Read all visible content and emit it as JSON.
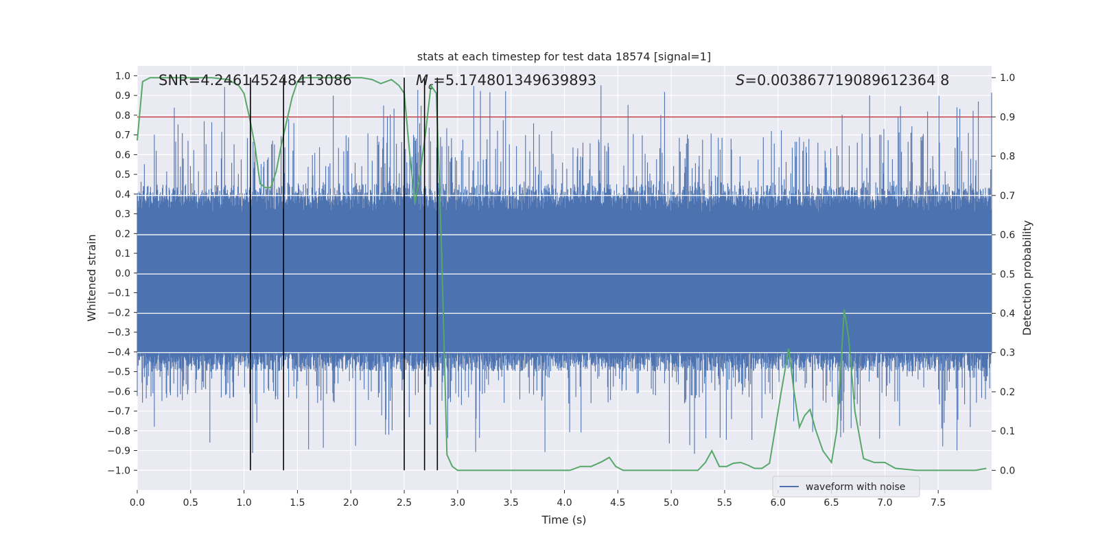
{
  "chart_data": {
    "type": "line",
    "title": "stats at each timestep for test data 18574 [signal=1]",
    "xlabel": "Time (s)",
    "ylabel": "Whitened strain",
    "ylabel_right": "Detection probability",
    "xlim": [
      0.0,
      8.0
    ],
    "ylim": [
      -1.1,
      1.05
    ],
    "ylim_right": [
      -0.05,
      1.03
    ],
    "x_ticks": [
      "0.0",
      "0.5",
      "1.0",
      "1.5",
      "2.0",
      "2.5",
      "3.0",
      "3.5",
      "4.0",
      "4.5",
      "5.0",
      "5.5",
      "6.0",
      "6.5",
      "7.0",
      "7.5"
    ],
    "y_ticks": [
      "1.0",
      "0.9",
      "0.8",
      "0.7",
      "0.6",
      "0.5",
      "0.4",
      "0.3",
      "0.2",
      "0.1",
      "0.0",
      "-0.1",
      "-0.2",
      "-0.3",
      "-0.4",
      "-0.5",
      "-0.6",
      "-0.7",
      "-0.8",
      "-0.9",
      "-1.0"
    ],
    "y_right_ticks": [
      "1.0",
      "0.9",
      "0.8",
      "0.7",
      "0.6",
      "0.5",
      "0.4",
      "0.3",
      "0.2",
      "0.1",
      "0.0"
    ],
    "annotations": {
      "snr": "SNR=4.246145248413086",
      "mc_symbol": "M",
      "mc_subscript": "c",
      "mc_value": "=5.174801349639893",
      "s_symbol": "S",
      "s_value": "=0.003867719089612364 8"
    },
    "legend": {
      "label": "waveform with noise",
      "position": "lower right"
    },
    "threshold": {
      "y_right": 0.9,
      "color": "#c44e52"
    },
    "vertical_lines_x": [
      1.06,
      1.37,
      2.5,
      2.69,
      2.81
    ],
    "detection_probability": {
      "x": [
        0.0,
        0.05,
        0.12,
        0.25,
        0.4,
        0.55,
        0.7,
        0.85,
        0.95,
        1.0,
        1.05,
        1.1,
        1.15,
        1.2,
        1.25,
        1.3,
        1.35,
        1.4,
        1.45,
        1.5,
        1.55,
        1.6,
        1.7,
        1.8,
        1.9,
        2.0,
        2.1,
        2.2,
        2.28,
        2.33,
        2.38,
        2.45,
        2.5,
        2.55,
        2.6,
        2.65,
        2.7,
        2.75,
        2.8,
        2.85,
        2.9,
        2.95,
        3.0,
        3.1,
        3.3,
        3.5,
        3.7,
        3.9,
        4.05,
        4.15,
        4.25,
        4.35,
        4.42,
        4.48,
        4.55,
        4.7,
        4.9,
        5.1,
        5.25,
        5.32,
        5.38,
        5.45,
        5.52,
        5.58,
        5.65,
        5.72,
        5.78,
        5.85,
        5.92,
        5.97,
        6.03,
        6.1,
        6.15,
        6.2,
        6.25,
        6.3,
        6.35,
        6.42,
        6.5,
        6.55,
        6.58,
        6.62,
        6.66,
        6.72,
        6.8,
        6.9,
        7.0,
        7.1,
        7.3,
        7.5,
        7.7,
        7.85,
        7.95
      ],
      "y": [
        0.84,
        0.99,
        1.0,
        1.0,
        1.0,
        1.0,
        1.0,
        0.995,
        0.98,
        0.96,
        0.9,
        0.83,
        0.73,
        0.72,
        0.72,
        0.76,
        0.83,
        0.89,
        0.95,
        0.99,
        1.0,
        1.0,
        1.0,
        1.0,
        1.0,
        1.0,
        1.0,
        0.995,
        0.985,
        0.99,
        0.995,
        0.98,
        0.96,
        0.81,
        0.68,
        0.76,
        0.86,
        0.98,
        0.96,
        0.56,
        0.04,
        0.01,
        0.0,
        0.0,
        0.0,
        0.0,
        0.0,
        0.0,
        0.0,
        0.01,
        0.01,
        0.022,
        0.033,
        0.01,
        0.0,
        0.0,
        0.0,
        0.0,
        0.0,
        0.02,
        0.05,
        0.01,
        0.01,
        0.018,
        0.02,
        0.013,
        0.005,
        0.005,
        0.018,
        0.1,
        0.2,
        0.31,
        0.2,
        0.11,
        0.14,
        0.155,
        0.105,
        0.05,
        0.02,
        0.1,
        0.23,
        0.41,
        0.34,
        0.15,
        0.03,
        0.02,
        0.02,
        0.005,
        0.0,
        0.0,
        0.0,
        0.0,
        0.005
      ]
    },
    "colors": {
      "waveform": "#4c72b0",
      "probability": "#55a868",
      "threshold": "#c44e52",
      "vlines": "#000000",
      "plot_bg": "#eaeaf2",
      "grid": "#ffffff"
    }
  }
}
